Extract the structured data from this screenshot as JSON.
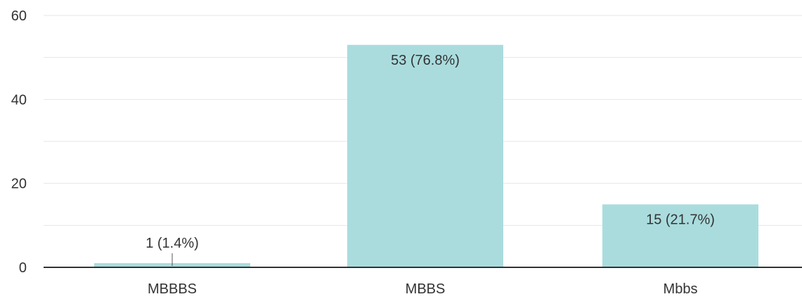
{
  "chart_data": {
    "type": "bar",
    "categories": [
      "MBBBS",
      "MBBS",
      "Mbbs"
    ],
    "values": [
      1,
      53,
      15
    ],
    "data_labels": [
      "1 (1.4%)",
      "53 (76.8%)",
      "15 (21.7%)"
    ],
    "yticks": [
      "0",
      "20",
      "40",
      "60"
    ],
    "ylim": [
      0,
      60
    ],
    "grid": true,
    "bar_color": "#aadcde",
    "axis_color": "#333333",
    "title": "",
    "xlabel": "",
    "ylabel": ""
  }
}
